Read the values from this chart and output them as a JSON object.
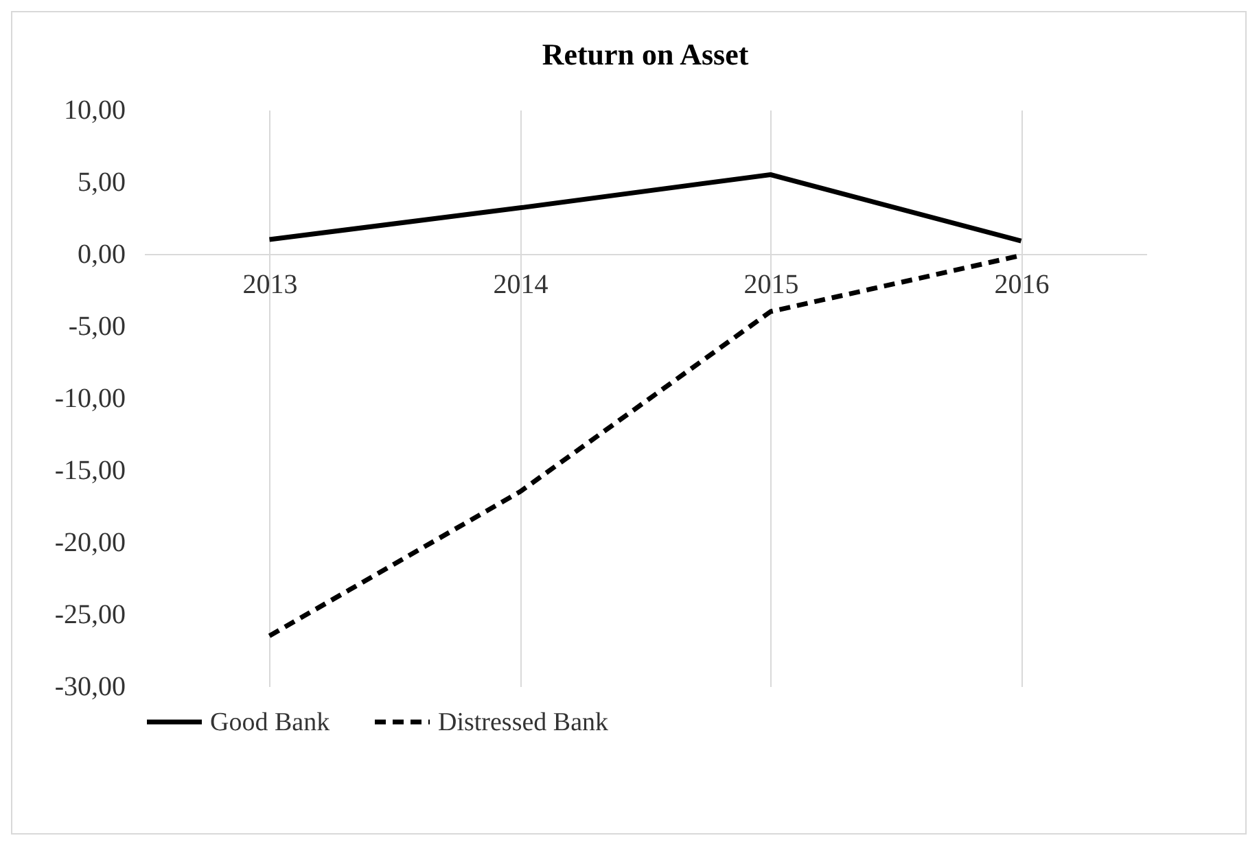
{
  "chart_data": {
    "type": "line",
    "title": "Return on Asset",
    "categories": [
      "2013",
      "2014",
      "2015",
      "2016"
    ],
    "series": [
      {
        "name": "Good Bank",
        "color": "#000000",
        "line_style": "solid",
        "values": [
          1.0,
          3.2,
          5.5,
          0.9
        ]
      },
      {
        "name": "Distressed Bank",
        "color": "#000000",
        "line_style": "dashed",
        "values": [
          -26.5,
          -16.5,
          -4.0,
          -0.1
        ]
      }
    ],
    "ylim": [
      -30,
      10
    ],
    "yticks": [
      {
        "value": 10,
        "label": "10,00"
      },
      {
        "value": 5,
        "label": "5,00"
      },
      {
        "value": 0,
        "label": "0,00"
      },
      {
        "value": -5,
        "label": "-5,00"
      },
      {
        "value": -10,
        "label": "-10,00"
      },
      {
        "value": -15,
        "label": "-15,00"
      },
      {
        "value": -20,
        "label": "-20,00"
      },
      {
        "value": -25,
        "label": "-25,00"
      },
      {
        "value": -30,
        "label": "-30,00"
      }
    ],
    "grid": "x",
    "legend": "bottom"
  }
}
